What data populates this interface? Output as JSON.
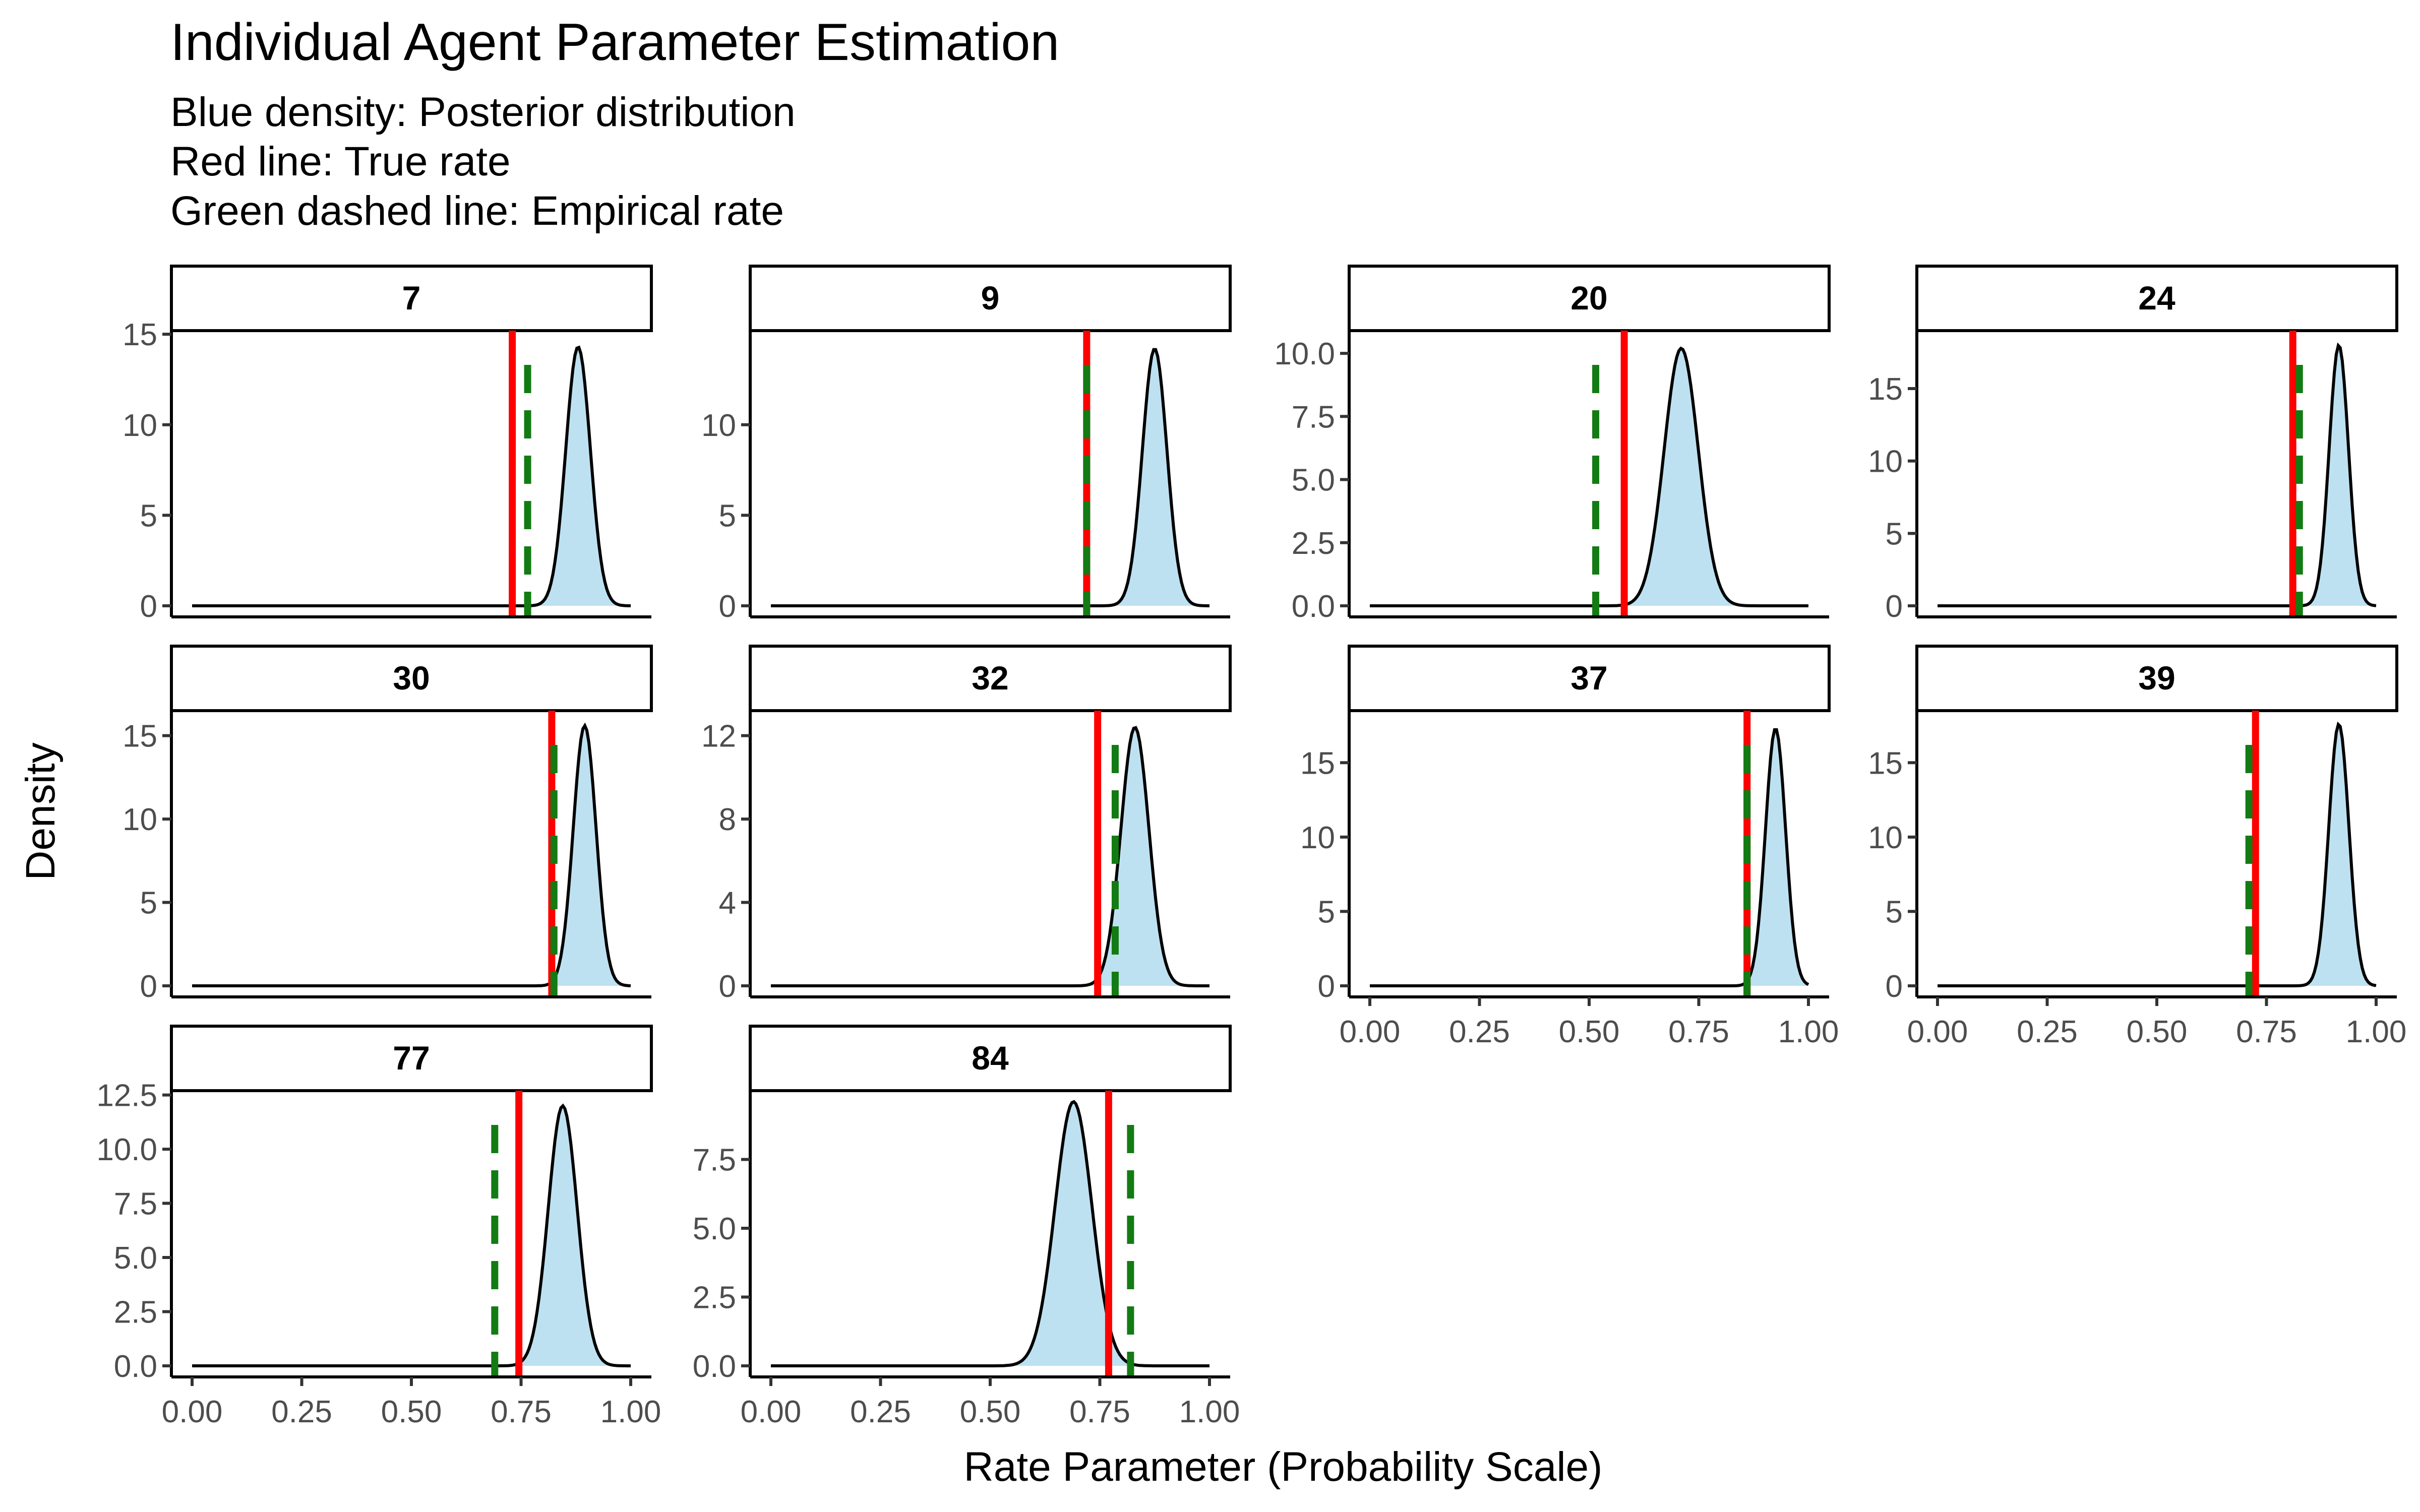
{
  "title": "Individual Agent Parameter Estimation",
  "subtitle_lines": [
    "Blue density: Posterior distribution",
    "Red line: True rate",
    "Green dashed line: Empirical rate"
  ],
  "colors": {
    "density_fill": "#bde1f1",
    "density_line": "#000000",
    "true_rate": "#ff0000",
    "empirical_rate": "#137b13"
  },
  "chart_data": {
    "type": "area",
    "title": "Individual Agent Parameter Estimation",
    "xlabel": "Rate Parameter (Probability Scale)",
    "ylabel": "Density",
    "xlim": [
      0,
      1
    ],
    "x_ticks": [
      "0.00",
      "0.25",
      "0.50",
      "0.75",
      "1.00"
    ],
    "grid": false,
    "facets": [
      {
        "label": "7",
        "mean": 0.88,
        "sd": 0.028,
        "peak": 14.3,
        "true_rate": 0.73,
        "empirical_rate": 0.765,
        "ylim": [
          0,
          15.2
        ],
        "y_ticks": [
          0,
          5,
          10,
          15
        ],
        "y_tick_labels": [
          "0",
          "5",
          "10",
          "15"
        ]
      },
      {
        "label": "9",
        "mean": 0.875,
        "sd": 0.028,
        "peak": 14.2,
        "true_rate": 0.72,
        "empirical_rate": 0.72,
        "ylim": [
          0,
          15.2
        ],
        "y_ticks": [
          0,
          5,
          10
        ],
        "y_tick_labels": [
          "0",
          "5",
          "10"
        ]
      },
      {
        "label": "20",
        "mean": 0.71,
        "sd": 0.039,
        "peak": 10.2,
        "true_rate": 0.58,
        "empirical_rate": 0.515,
        "ylim": [
          0,
          10.9
        ],
        "y_ticks": [
          0,
          2.5,
          5,
          7.5,
          10
        ],
        "y_tick_labels": [
          "0.0",
          "2.5",
          "5.0",
          "7.5",
          "10.0"
        ]
      },
      {
        "label": "24",
        "mean": 0.915,
        "sd": 0.022,
        "peak": 18.0,
        "true_rate": 0.81,
        "empirical_rate": 0.825,
        "ylim": [
          0,
          19.0
        ],
        "y_ticks": [
          0,
          5,
          10,
          15
        ],
        "y_tick_labels": [
          "0",
          "5",
          "10",
          "15"
        ]
      },
      {
        "label": "30",
        "mean": 0.895,
        "sd": 0.026,
        "peak": 15.6,
        "true_rate": 0.82,
        "empirical_rate": 0.825,
        "ylim": [
          0,
          16.5
        ],
        "y_ticks": [
          0,
          5,
          10,
          15
        ],
        "y_tick_labels": [
          "0",
          "5",
          "10",
          "15"
        ]
      },
      {
        "label": "32",
        "mean": 0.83,
        "sd": 0.032,
        "peak": 12.4,
        "true_rate": 0.745,
        "empirical_rate": 0.785,
        "ylim": [
          0,
          13.2
        ],
        "y_ticks": [
          0,
          4,
          8,
          12
        ],
        "y_tick_labels": [
          "0",
          "4",
          "8",
          "12"
        ]
      },
      {
        "label": "37",
        "mean": 0.925,
        "sd": 0.023,
        "peak": 17.3,
        "true_rate": 0.86,
        "empirical_rate": 0.86,
        "ylim": [
          0,
          18.5
        ],
        "y_ticks": [
          0,
          5,
          10,
          15
        ],
        "y_tick_labels": [
          "0",
          "5",
          "10",
          "15"
        ]
      },
      {
        "label": "39",
        "mean": 0.915,
        "sd": 0.023,
        "peak": 17.6,
        "true_rate": 0.725,
        "empirical_rate": 0.71,
        "ylim": [
          0,
          18.5
        ],
        "y_ticks": [
          0,
          5,
          10,
          15
        ],
        "y_tick_labels": [
          "0",
          "5",
          "10",
          "15"
        ]
      },
      {
        "label": "77",
        "mean": 0.845,
        "sd": 0.033,
        "peak": 12.0,
        "true_rate": 0.745,
        "empirical_rate": 0.69,
        "ylim": [
          0,
          12.7
        ],
        "y_ticks": [
          0,
          2.5,
          5,
          7.5,
          10,
          12.5
        ],
        "y_tick_labels": [
          "0.0",
          "2.5",
          "5.0",
          "7.5",
          "10.0",
          "12.5"
        ]
      },
      {
        "label": "84",
        "mean": 0.69,
        "sd": 0.042,
        "peak": 9.6,
        "true_rate": 0.77,
        "empirical_rate": 0.82,
        "ylim": [
          0,
          10.0
        ],
        "y_ticks": [
          0,
          2.5,
          5,
          7.5
        ],
        "y_tick_labels": [
          "0.0",
          "2.5",
          "5.0",
          "7.5"
        ]
      }
    ]
  }
}
